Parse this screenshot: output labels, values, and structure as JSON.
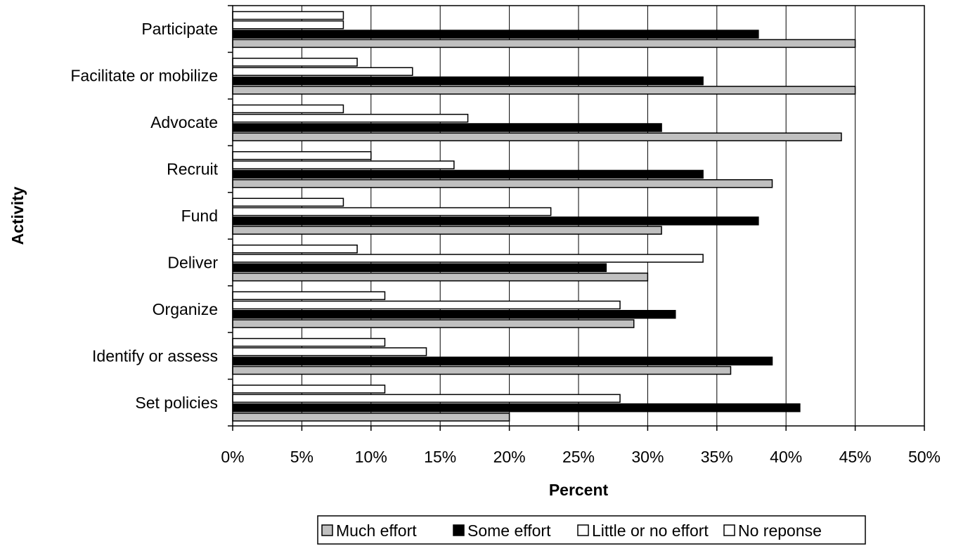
{
  "chart_data": {
    "type": "bar",
    "orientation": "horizontal",
    "title": "",
    "xlabel": "Percent",
    "ylabel": "Activity",
    "xlim": [
      0,
      50
    ],
    "x_ticks": [
      "0%",
      "5%",
      "10%",
      "15%",
      "20%",
      "25%",
      "30%",
      "35%",
      "40%",
      "45%",
      "50%"
    ],
    "x_tick_values": [
      0,
      5,
      10,
      15,
      20,
      25,
      30,
      35,
      40,
      45,
      50
    ],
    "grid": "vertical",
    "legend_position": "bottom",
    "categories": [
      "Participate",
      "Facilitate or mobilize",
      "Advocate",
      "Recruit",
      "Fund",
      "Deliver",
      "Organize",
      "Identify or assess",
      "Set policies"
    ],
    "series": [
      {
        "name": "Much effort",
        "color": "#c0c0c0",
        "values": [
          45,
          45,
          44,
          39,
          31,
          30,
          29,
          36,
          20
        ]
      },
      {
        "name": "Some effort",
        "color": "#000000",
        "values": [
          38,
          34,
          31,
          34,
          38,
          27,
          32,
          39,
          41
        ]
      },
      {
        "name": "Little or no effort",
        "color": "#ffffff",
        "values": [
          8,
          13,
          17,
          16,
          23,
          34,
          28,
          14,
          28
        ]
      },
      {
        "name": "No reponse",
        "color": "#ffffff",
        "values": [
          8,
          9,
          8,
          10,
          8,
          9,
          11,
          11,
          11
        ]
      }
    ]
  }
}
